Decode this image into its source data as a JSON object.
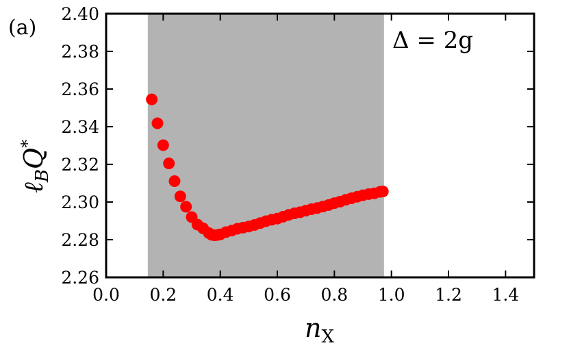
{
  "chart_data": {
    "type": "scatter",
    "panel_label": "(a)",
    "annotation": "Δ = 2g",
    "xlabel": "n",
    "xlabel_sub": "X",
    "ylabel": "ℓ",
    "ylabel_sub": "B",
    "ylabel_rest": "Q",
    "ylabel_sup": "*",
    "xlim": [
      0.0,
      1.5
    ],
    "ylim": [
      2.26,
      2.4
    ],
    "x_ticks": [
      0.0,
      0.2,
      0.4,
      0.6,
      0.8,
      1.0,
      1.2,
      1.4
    ],
    "x_tick_labels": [
      "0.0",
      "0.2",
      "0.4",
      "0.6",
      "0.8",
      "1.0",
      "1.2",
      "1.4"
    ],
    "y_ticks": [
      2.26,
      2.28,
      2.3,
      2.32,
      2.34,
      2.36,
      2.38,
      2.4
    ],
    "y_tick_labels": [
      "2.26",
      "2.28",
      "2.30",
      "2.32",
      "2.34",
      "2.36",
      "2.38",
      "2.40"
    ],
    "shaded_region": {
      "x": [
        0.146,
        0.974
      ],
      "color": "#b3b3b3"
    },
    "grid": false,
    "marker_color": "#ff0000",
    "series": [
      {
        "x": [
          0.16,
          0.18,
          0.2,
          0.22,
          0.24,
          0.26,
          0.28,
          0.3,
          0.32,
          0.34,
          0.36,
          0.37,
          0.38,
          0.39,
          0.4,
          0.42,
          0.44,
          0.46,
          0.48,
          0.5,
          0.52,
          0.54,
          0.56,
          0.58,
          0.6,
          0.62,
          0.64,
          0.66,
          0.68,
          0.7,
          0.72,
          0.74,
          0.76,
          0.78,
          0.8,
          0.82,
          0.84,
          0.86,
          0.88,
          0.9,
          0.92,
          0.94,
          0.96,
          0.97
        ],
        "y": [
          2.3545,
          2.3418,
          2.3302,
          2.3205,
          2.3111,
          2.303,
          2.2975,
          2.292,
          2.288,
          2.286,
          2.2835,
          2.2826,
          2.2823,
          2.2825,
          2.2828,
          2.284,
          2.2848,
          2.2858,
          2.2864,
          2.287,
          2.2878,
          2.2888,
          2.2898,
          2.2906,
          2.2912,
          2.2922,
          2.2932,
          2.294,
          2.2946,
          2.2954,
          2.2962,
          2.2968,
          2.2976,
          2.2984,
          2.2994,
          2.3002,
          2.3012,
          2.302,
          2.3028,
          2.3036,
          2.3042,
          2.3046,
          2.3054,
          2.3056
        ]
      }
    ]
  }
}
